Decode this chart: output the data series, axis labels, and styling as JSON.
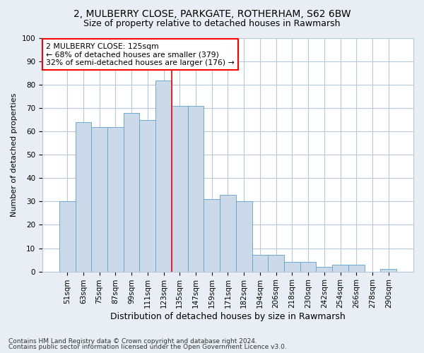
{
  "title1": "2, MULBERRY CLOSE, PARKGATE, ROTHERHAM, S62 6BW",
  "title2": "Size of property relative to detached houses in Rawmarsh",
  "xlabel": "Distribution of detached houses by size in Rawmarsh",
  "ylabel": "Number of detached properties",
  "categories": [
    "51sqm",
    "63sqm",
    "75sqm",
    "87sqm",
    "99sqm",
    "111sqm",
    "123sqm",
    "135sqm",
    "147sqm",
    "159sqm",
    "171sqm",
    "182sqm",
    "194sqm",
    "206sqm",
    "218sqm",
    "230sqm",
    "242sqm",
    "254sqm",
    "266sqm",
    "278sqm",
    "290sqm"
  ],
  "values": [
    30,
    64,
    62,
    62,
    68,
    65,
    82,
    71,
    71,
    31,
    33,
    30,
    7,
    7,
    4,
    4,
    2,
    3,
    3,
    0,
    1
  ],
  "bar_color": "#ccd9e8",
  "bar_edge_color": "#6baad0",
  "red_line_index": 6,
  "annotation_text": "2 MULBERRY CLOSE: 125sqm\n← 68% of detached houses are smaller (379)\n32% of semi-detached houses are larger (176) →",
  "annotation_box_color": "white",
  "annotation_box_edge": "red",
  "ylim": [
    0,
    100
  ],
  "yticks": [
    0,
    10,
    20,
    30,
    40,
    50,
    60,
    70,
    80,
    90,
    100
  ],
  "footer1": "Contains HM Land Registry data © Crown copyright and database right 2024.",
  "footer2": "Contains public sector information licensed under the Open Government Licence v3.0.",
  "bg_color": "#e8eef4",
  "plot_bg_color": "#ffffff",
  "grid_color": "#b8c8d8",
  "title1_fontsize": 10,
  "title2_fontsize": 9,
  "ylabel_fontsize": 8,
  "xlabel_fontsize": 9,
  "tick_fontsize": 7.5,
  "footer_fontsize": 6.5
}
